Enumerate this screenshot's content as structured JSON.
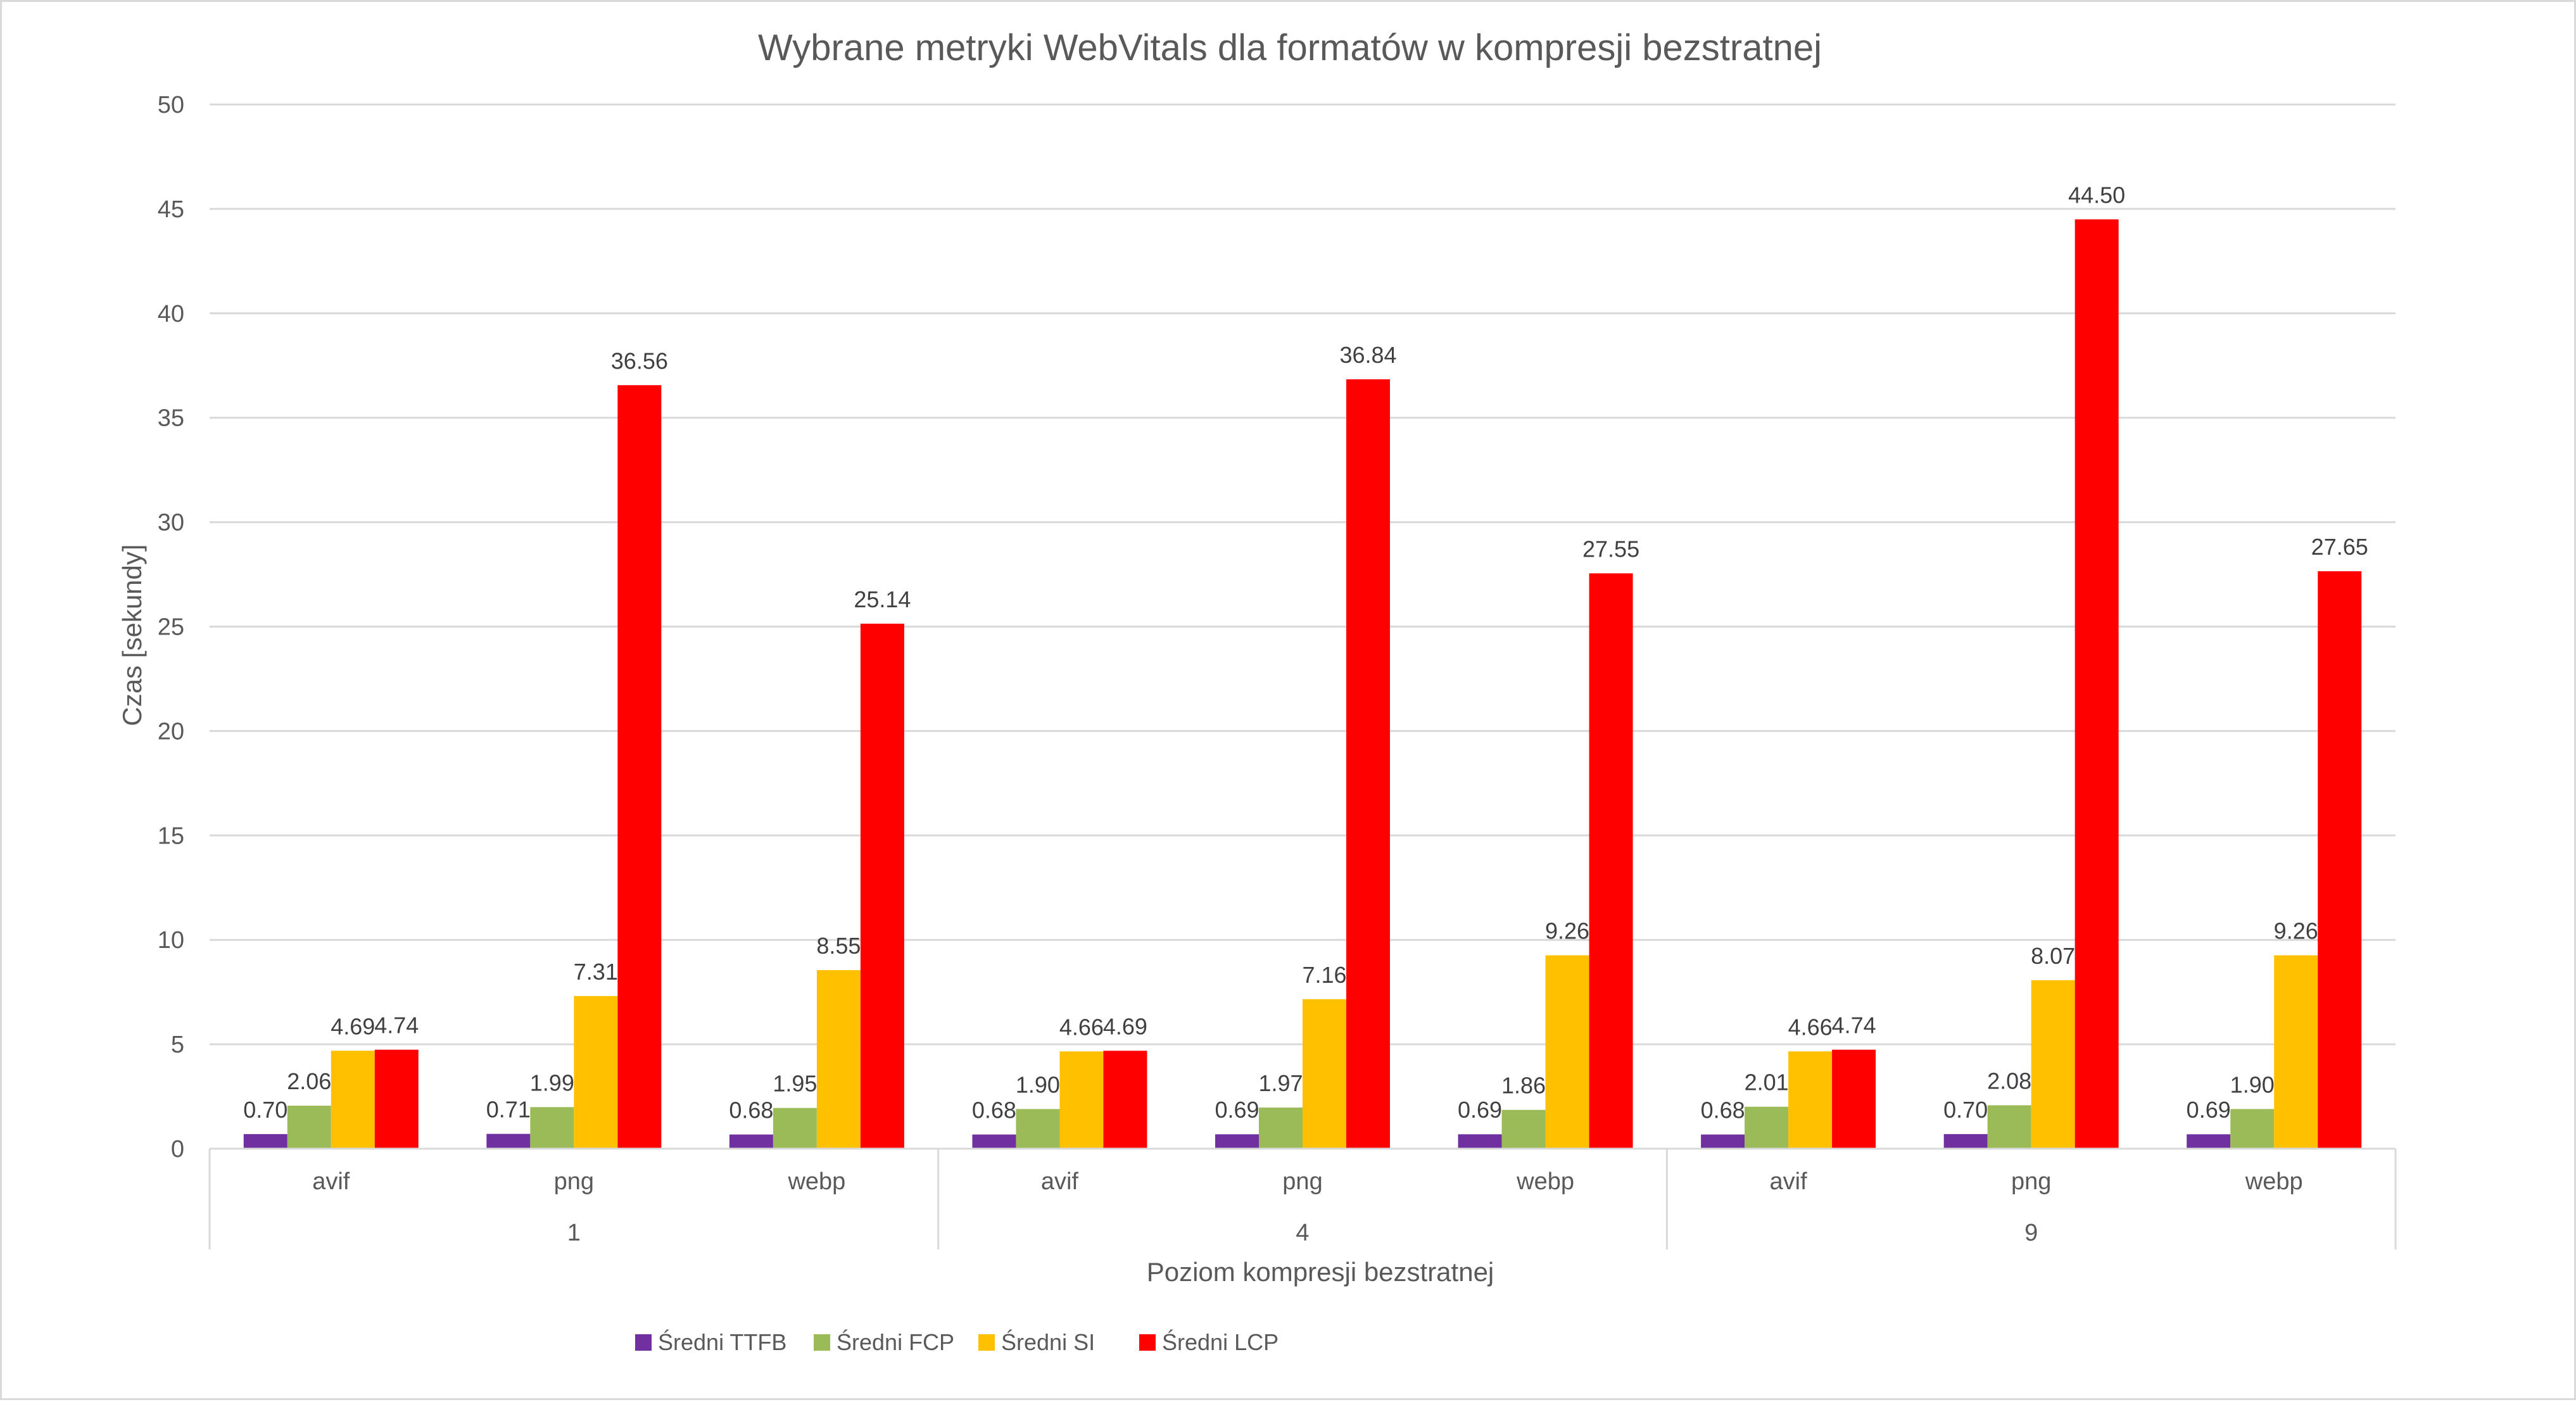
{
  "chart_data": {
    "type": "bar",
    "title": "Wybrane metryki WebVitals dla formatów w kompresji bezstratnej",
    "xlabel": "Poziom kompresji bezstratnej",
    "ylabel": "Czas [sekundy]",
    "ylim": [
      0,
      50
    ],
    "yticks": [
      0,
      5,
      10,
      15,
      20,
      25,
      30,
      35,
      40,
      45,
      50
    ],
    "grid": true,
    "legend_position": "bottom",
    "groups": [
      "1",
      "4",
      "9"
    ],
    "subcategories": [
      "avif",
      "png",
      "webp"
    ],
    "categories": [
      "avif",
      "png",
      "webp",
      "avif",
      "png",
      "webp",
      "avif",
      "png",
      "webp"
    ],
    "series": [
      {
        "name": "Średni TTFB",
        "color": "#7030A0",
        "values": [
          0.7,
          0.71,
          0.68,
          0.68,
          0.69,
          0.69,
          0.68,
          0.7,
          0.69
        ],
        "labels": [
          "0.70",
          "0.71",
          "0.68",
          "0.68",
          "0.69",
          "0.69",
          "0.68",
          "0.70",
          "0.69"
        ]
      },
      {
        "name": "Średni FCP",
        "color": "#9BBB59",
        "values": [
          2.06,
          1.99,
          1.95,
          1.9,
          1.97,
          1.86,
          2.01,
          2.08,
          1.9
        ],
        "labels": [
          "2.06",
          "1.99",
          "1.95",
          "1.90",
          "1.97",
          "1.86",
          "2.01",
          "2.08",
          "1.90"
        ]
      },
      {
        "name": "Średni SI",
        "color": "#FFC000",
        "values": [
          4.69,
          7.31,
          8.55,
          4.66,
          7.16,
          9.26,
          4.66,
          8.07,
          9.26
        ],
        "labels": [
          "4.69",
          "7.31",
          "8.55",
          "4.66",
          "7.16",
          "9.26",
          "4.66",
          "8.07",
          "9.26"
        ]
      },
      {
        "name": "Średni LCP",
        "color": "#FF0000",
        "values": [
          4.74,
          36.56,
          25.14,
          4.69,
          36.84,
          27.55,
          4.74,
          44.5,
          27.65
        ],
        "labels": [
          "4.74",
          "36.56",
          "25.14",
          "4.69",
          "36.84",
          "27.55",
          "4.74",
          "44.50",
          "27.65"
        ]
      }
    ]
  }
}
